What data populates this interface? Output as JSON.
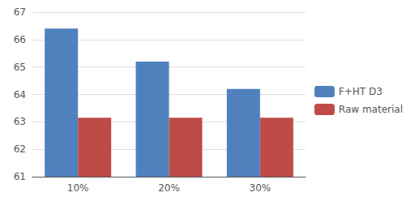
{
  "chart_data": {
    "type": "bar",
    "categories": [
      "10%",
      "20%",
      "30%"
    ],
    "series": [
      {
        "name": "F+HT D3",
        "color": "#4F81BD",
        "values": [
          66.4,
          65.2,
          64.2
        ]
      },
      {
        "name": "Raw material",
        "color": "#BE4B48",
        "values": [
          63.15,
          63.15,
          63.15
        ]
      }
    ],
    "ylim": [
      61,
      67
    ],
    "yticks": [
      61,
      62,
      63,
      64,
      65,
      66,
      67
    ],
    "grid": true,
    "legend": "right"
  }
}
